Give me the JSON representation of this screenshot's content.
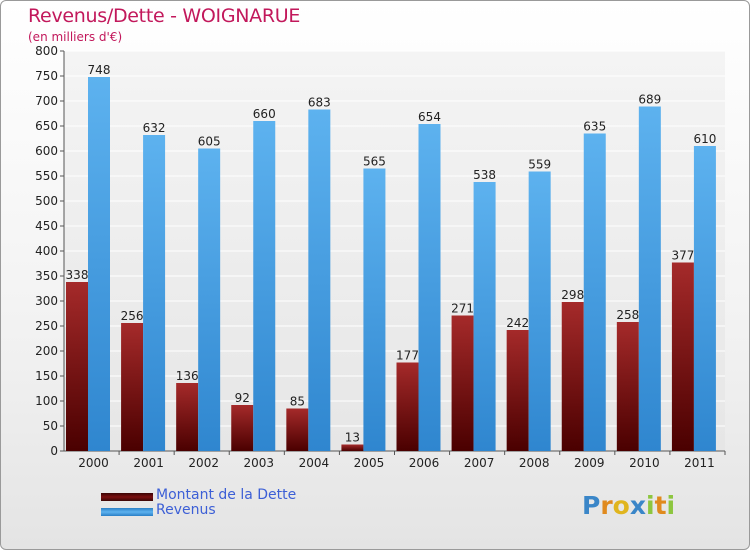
{
  "header": {
    "title": "Revenus/Dette - WOIGNARUE",
    "subtitle": "(en milliers d'€)"
  },
  "chart_data": {
    "type": "bar",
    "title": "Revenus/Dette - WOIGNARUE",
    "subtitle": "(en milliers d'€)",
    "categories": [
      "2000",
      "2001",
      "2002",
      "2003",
      "2004",
      "2005",
      "2006",
      "2007",
      "2008",
      "2009",
      "2010",
      "2011"
    ],
    "series": [
      {
        "name": "Montant de la Dette",
        "color": "#8b1a1a",
        "values": [
          338,
          256,
          136,
          92,
          85,
          13,
          177,
          271,
          242,
          298,
          258,
          377
        ]
      },
      {
        "name": "Revenus",
        "color": "#4aa0e6",
        "values": [
          748,
          632,
          605,
          660,
          683,
          565,
          654,
          538,
          559,
          635,
          689,
          610
        ]
      }
    ],
    "yticks": [
      0,
      50,
      100,
      150,
      200,
      250,
      300,
      350,
      400,
      450,
      500,
      550,
      600,
      650,
      700,
      750,
      800
    ],
    "ylim": [
      0,
      800
    ],
    "grid": true,
    "xlabel": "",
    "ylabel": "",
    "legend_position": "bottom-left"
  },
  "legend": {
    "items": [
      {
        "label": "Montant de la Dette",
        "color": "#7a0f0f"
      },
      {
        "label": "Revenus",
        "color": "#4aa0e6"
      }
    ]
  },
  "logo": {
    "letters": [
      {
        "ch": "P",
        "color": "#3a86c8"
      },
      {
        "ch": "r",
        "color": "#e08a1e"
      },
      {
        "ch": "o",
        "color": "#e0b51e"
      },
      {
        "ch": "x",
        "color": "#3a86c8"
      },
      {
        "ch": "i",
        "color": "#8dc63f"
      },
      {
        "ch": "t",
        "color": "#e08a1e"
      },
      {
        "ch": "i",
        "color": "#8dc63f"
      }
    ]
  }
}
